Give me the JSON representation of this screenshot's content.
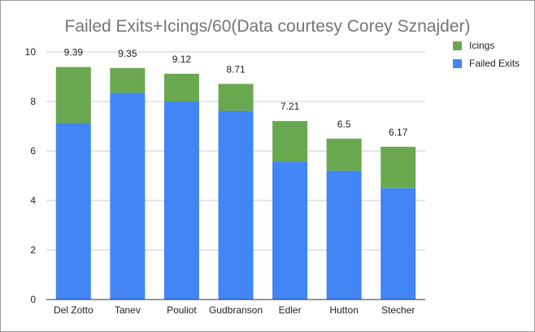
{
  "chart_data": {
    "type": "bar",
    "stacked": true,
    "title": "Failed Exits+Icings/60(Data courtesy Corey Sznajder)",
    "categories": [
      "Del Zotto",
      "Tanev",
      "Pouliot",
      "Gudbranson",
      "Edler",
      "Hutton",
      "Stecher"
    ],
    "series": [
      {
        "name": "Failed Exits",
        "color": "#4285f4",
        "values": [
          7.13,
          8.35,
          8.0,
          7.62,
          5.57,
          5.2,
          4.5
        ]
      },
      {
        "name": "Icings",
        "color": "#6aa84f",
        "values": [
          2.26,
          1.0,
          1.12,
          1.09,
          1.64,
          1.3,
          1.67
        ]
      }
    ],
    "totals": [
      9.39,
      9.35,
      9.12,
      8.71,
      7.21,
      6.5,
      6.17
    ],
    "total_labels": [
      "9.39",
      "9.35",
      "9.12",
      "8.71",
      "7.21",
      "6.5",
      "6.17"
    ],
    "ylim": [
      0,
      10
    ],
    "yticks": [
      0,
      2,
      4,
      6,
      8,
      10
    ],
    "grid": true,
    "legend": {
      "placement": "right",
      "order": [
        "Icings",
        "Failed Exits"
      ]
    }
  }
}
